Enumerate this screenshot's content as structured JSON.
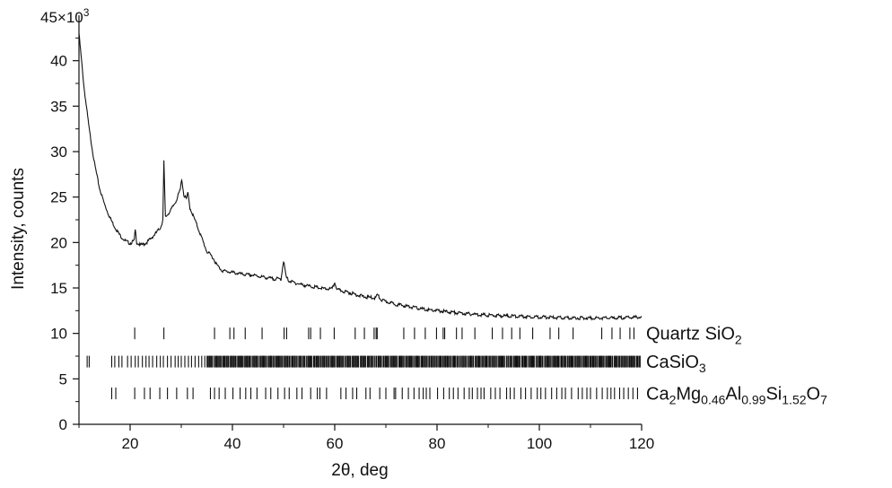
{
  "chart_data": {
    "type": "line",
    "title": "",
    "xlabel": "2θ, deg",
    "ylabel": "Intensity, counts",
    "xlim": [
      10,
      120
    ],
    "ylim": [
      0,
      45000
    ],
    "x_ticks": [
      20,
      40,
      60,
      80,
      100,
      120
    ],
    "x_tick_labels": [
      "20",
      "40",
      "60",
      "80",
      "100",
      "120"
    ],
    "y_ticks": [
      0,
      5000,
      10000,
      15000,
      20000,
      25000,
      30000,
      35000,
      40000
    ],
    "y_tick_labels": [
      "0",
      "5",
      "10",
      "15",
      "20",
      "25",
      "30",
      "35",
      "40"
    ],
    "y_multiplier_label": "45×10",
    "y_multiplier_exp": "3",
    "grid": false,
    "series": [
      {
        "x": [
          10,
          11,
          12,
          13,
          14,
          15,
          16,
          17,
          18,
          19,
          20,
          20.8,
          21,
          21.3,
          22,
          23,
          24,
          25,
          26,
          26.4,
          26.6,
          26.9,
          27.5,
          28,
          29,
          29.8,
          30.1,
          30.5,
          31,
          31.3,
          31.7,
          32,
          33,
          34,
          35,
          36,
          37,
          38,
          40,
          42,
          44,
          46,
          48,
          49.5,
          50,
          50.5,
          51,
          52,
          54,
          56,
          58,
          59.5,
          60,
          60.5,
          62,
          64,
          66,
          68,
          68.3,
          69,
          70,
          72,
          74,
          76,
          78,
          80,
          85,
          90,
          95,
          100,
          105,
          110,
          115,
          120
        ],
        "values": [
          43000,
          37000,
          32500,
          28800,
          26000,
          24200,
          22800,
          21700,
          20800,
          20200,
          19900,
          20200,
          21400,
          20000,
          19700,
          19900,
          20400,
          21000,
          21700,
          22500,
          28900,
          22800,
          23200,
          23600,
          24600,
          25800,
          27000,
          25200,
          24800,
          25400,
          23800,
          23400,
          22000,
          20500,
          19000,
          18500,
          17500,
          16900,
          16700,
          16500,
          16400,
          16200,
          16000,
          16000,
          18000,
          16200,
          15800,
          15600,
          15300,
          15100,
          14900,
          14900,
          15600,
          14800,
          14600,
          14300,
          14000,
          13900,
          14300,
          13700,
          13500,
          13200,
          13000,
          12800,
          12600,
          12500,
          12200,
          12000,
          11900,
          11800,
          11700,
          11700,
          11700,
          11800
        ]
      }
    ],
    "reference_phases": [
      {
        "label_parts": [
          {
            "text": "Quartz SiO",
            "sub": false
          },
          {
            "text": "2",
            "sub": true
          }
        ],
        "level": 10000,
        "positions": [
          20.9,
          26.6,
          36.5,
          39.5,
          40.3,
          42.5,
          45.8,
          50.1,
          50.6,
          54.9,
          55.3,
          57.2,
          59.9,
          64.0,
          65.8,
          67.7,
          68.1,
          68.3,
          73.5,
          75.6,
          77.7,
          79.9,
          81.2,
          81.5,
          83.8,
          84.9,
          87.4,
          90.8,
          92.8,
          94.6,
          96.2,
          98.7,
          102.1,
          103.8,
          106.6,
          112.2,
          114.2,
          115.8,
          117.7,
          118.5
        ]
      },
      {
        "label_parts": [
          {
            "text": "CaSiO",
            "sub": false
          },
          {
            "text": "3",
            "sub": true
          }
        ],
        "level": 6900,
        "dense_range": [
          35,
          120
        ],
        "dense_count": 420,
        "positions": [
          11.6,
          12.0,
          16.4,
          17.0,
          17.8,
          18.4,
          19.5,
          20.2,
          21.0,
          21.6,
          22.4,
          23.1,
          23.7,
          24.4,
          25.2,
          25.9,
          26.5,
          27.3,
          28.0,
          28.8,
          29.4,
          30.0,
          30.7,
          31.4,
          32.0,
          32.7,
          33.4,
          34.0,
          34.6
        ]
      },
      {
        "label_parts": [
          {
            "text": "Ca",
            "sub": false
          },
          {
            "text": "2",
            "sub": true
          },
          {
            "text": "Mg",
            "sub": false
          },
          {
            "text": "0.46",
            "sub": true
          },
          {
            "text": "Al",
            "sub": false
          },
          {
            "text": "0.99",
            "sub": true
          },
          {
            "text": "Si",
            "sub": false
          },
          {
            "text": "1.52",
            "sub": true
          },
          {
            "text": "O",
            "sub": false
          },
          {
            "text": "7",
            "sub": true
          }
        ],
        "level": 3400,
        "positions": [
          16.4,
          17.2,
          20.9,
          22.8,
          23.9,
          25.8,
          27.3,
          29.1,
          31.2,
          32.3,
          35.7,
          36.5,
          37.4,
          38.6,
          40.1,
          41.5,
          42.6,
          43.6,
          44.8,
          46.5,
          47.5,
          48.9,
          50.2,
          51.1,
          52.6,
          53.6,
          55.3,
          56.6,
          57.1,
          58.4,
          61.2,
          62.2,
          63.5,
          64.3,
          66.1,
          66.9,
          68.8,
          70.0,
          71.6,
          71.9,
          73.2,
          74.4,
          75.5,
          76.5,
          77.3,
          77.9,
          78.6,
          80.1,
          81.3,
          82.4,
          83.2,
          84.1,
          85.3,
          86.3,
          86.9,
          87.9,
          88.6,
          89.2,
          90.5,
          91.4,
          92.3,
          93.6,
          94.3,
          95.1,
          96.4,
          97.3,
          98.4,
          99.6,
          100.3,
          101.2,
          102.4,
          103.4,
          104.4,
          105.1,
          106.3,
          107.6,
          108.4,
          109.3,
          110.0,
          111.2,
          112.3,
          113.3,
          114.0,
          114.7,
          115.7,
          116.5,
          117.4,
          118.3,
          119.2
        ]
      }
    ]
  }
}
